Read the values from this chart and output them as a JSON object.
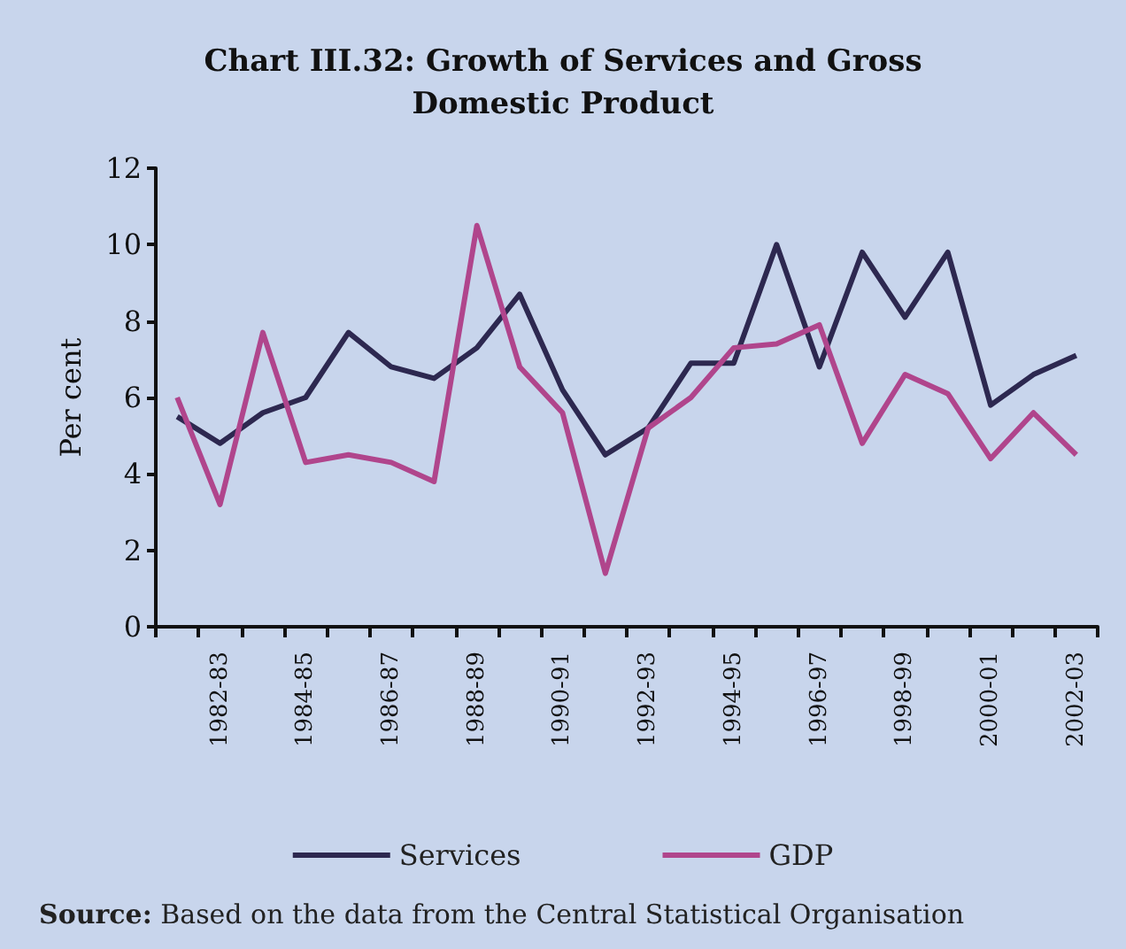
{
  "chart_data": {
    "type": "line",
    "title": "Chart III.32: Growth of Services and Gross\nDomestic Product",
    "ylabel": "Per cent",
    "categories": [
      null,
      "1982-83",
      null,
      "1984-85",
      null,
      "1986-87",
      null,
      "1988-89",
      null,
      "1990-91",
      null,
      "1992-93",
      null,
      "1994-95",
      null,
      "1996-97",
      null,
      "1998-99",
      null,
      "2000-01",
      null,
      "2002-03"
    ],
    "series": [
      {
        "name": "Services",
        "color": "#2d2850",
        "values": [
          5.5,
          4.8,
          5.6,
          6.0,
          7.7,
          6.8,
          6.5,
          7.3,
          8.7,
          6.2,
          4.5,
          5.2,
          6.9,
          6.9,
          10.0,
          6.8,
          9.8,
          8.1,
          9.8,
          5.8,
          6.6,
          7.1
        ]
      },
      {
        "name": "GDP",
        "color": "#b0458c",
        "values": [
          6.0,
          3.2,
          7.7,
          4.3,
          4.5,
          4.3,
          3.8,
          10.5,
          6.8,
          5.6,
          1.4,
          5.2,
          6.0,
          7.3,
          7.4,
          7.9,
          4.8,
          6.6,
          6.1,
          4.4,
          5.6,
          4.5
        ]
      }
    ],
    "ylim": [
      0,
      12
    ],
    "yticks": [
      0,
      2,
      4,
      6,
      8,
      10,
      12
    ],
    "grid": false,
    "legend": "bottom",
    "marker": "none",
    "line_style": "solid",
    "annotations": [
      "Source: Based on the data from the Central Statistical Organisation"
    ]
  }
}
